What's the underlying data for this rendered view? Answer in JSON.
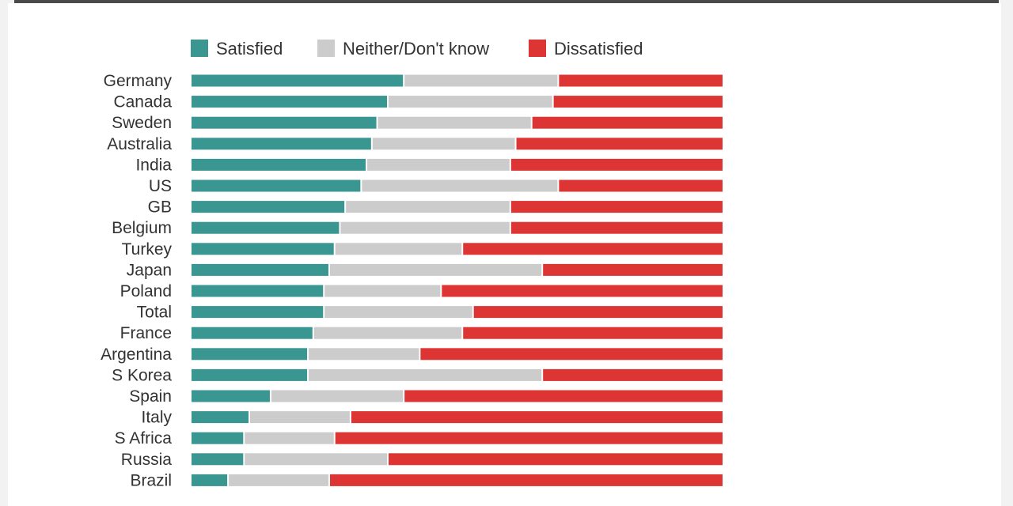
{
  "chart_data": {
    "type": "bar",
    "orientation": "horizontal",
    "stacked": true,
    "normalized_to": 100,
    "title": "",
    "xlabel": "",
    "ylabel": "",
    "xlim": [
      0,
      100
    ],
    "grid": false,
    "legend_position": "top",
    "categories": [
      "Germany",
      "Canada",
      "Sweden",
      "Australia",
      "India",
      "US",
      "GB",
      "Belgium",
      "Turkey",
      "Japan",
      "Poland",
      "Total",
      "France",
      "Argentina",
      "S Korea",
      "Spain",
      "Italy",
      "S Africa",
      "Russia",
      "Brazil"
    ],
    "series": [
      {
        "name": "Satisfied",
        "color": "#3a9690",
        "values": [
          40,
          37,
          35,
          34,
          33,
          32,
          29,
          28,
          27,
          26,
          25,
          25,
          23,
          22,
          22,
          15,
          11,
          10,
          10,
          7
        ]
      },
      {
        "name": "Neither/Don't know",
        "color": "#cccccc",
        "values": [
          29,
          31,
          29,
          27,
          27,
          37,
          31,
          32,
          24,
          40,
          22,
          28,
          28,
          21,
          44,
          25,
          19,
          17,
          27,
          19
        ]
      },
      {
        "name": "Dissatisfied",
        "color": "#dd3434",
        "values": [
          31,
          32,
          36,
          39,
          40,
          31,
          40,
          40,
          49,
          34,
          53,
          47,
          49,
          57,
          34,
          60,
          70,
          73,
          63,
          74
        ]
      }
    ]
  }
}
